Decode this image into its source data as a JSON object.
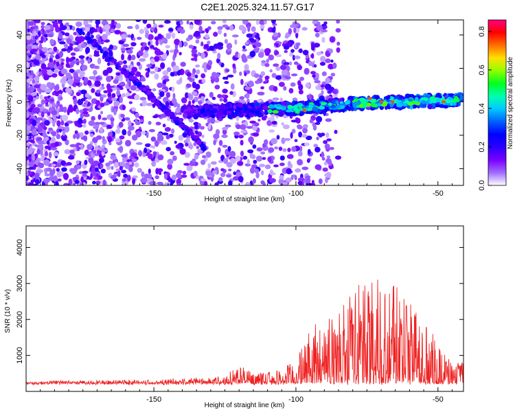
{
  "title": "C2E1.2025.324.11.57.G17",
  "chart_data": [
    {
      "type": "heatmap",
      "name": "spectrogram",
      "xlabel": "Height of straight line (km)",
      "ylabel": "Frequency (Hz)",
      "xlim": [
        -195,
        -41
      ],
      "ylim": [
        -50,
        49
      ],
      "xticks": [
        -150,
        -100,
        -50
      ],
      "yticks": [
        -40,
        -20,
        0,
        20,
        40
      ],
      "colorbar": {
        "label": "Normalized spectral amplitude",
        "range": [
          0.0,
          0.86
        ],
        "ticks": [
          0.0,
          0.2,
          0.4,
          0.6,
          0.8
        ],
        "colors": [
          "#ffffff",
          "#9f6cff",
          "#7a00ff",
          "#2a00ff",
          "#0000ff",
          "#0060ff",
          "#00c8ff",
          "#00ffb0",
          "#00ff20",
          "#90ff00",
          "#ffe000",
          "#ff7000",
          "#ff0000",
          "#ff0080"
        ]
      },
      "features": [
        {
          "name": "descending-line",
          "x": [
            -178,
            -165,
            -155,
            -148,
            -140,
            -132
          ],
          "y": [
            45,
            25,
            10,
            -2,
            -14,
            -28
          ]
        },
        {
          "name": "main-signal-band",
          "x": [
            -140,
            -120,
            -100,
            -80,
            -60,
            -45
          ],
          "y": [
            -6,
            -5,
            -4,
            -1,
            0,
            1
          ]
        }
      ]
    },
    {
      "type": "line",
      "name": "snr",
      "xlabel": "Height of straight line (km)",
      "ylabel": "SNR (10 * v/v)",
      "xlim": [
        -195,
        -41
      ],
      "ylim": [
        0,
        4600
      ],
      "xticks": [
        -150,
        -100,
        -50
      ],
      "yticks": [
        1000,
        2000,
        3000,
        4000
      ],
      "color": "#ee2222",
      "envelope": {
        "x": [
          -195,
          -180,
          -160,
          -145,
          -135,
          -125,
          -120,
          -115,
          -105,
          -100,
          -95,
          -90,
          -85,
          -80,
          -75,
          -70,
          -65,
          -60,
          -55,
          -50,
          -45,
          -41
        ],
        "y": [
          280,
          300,
          320,
          340,
          380,
          420,
          800,
          480,
          600,
          900,
          1700,
          2000,
          2200,
          2700,
          3100,
          3200,
          3100,
          2600,
          2000,
          1300,
          900,
          800
        ]
      }
    }
  ]
}
